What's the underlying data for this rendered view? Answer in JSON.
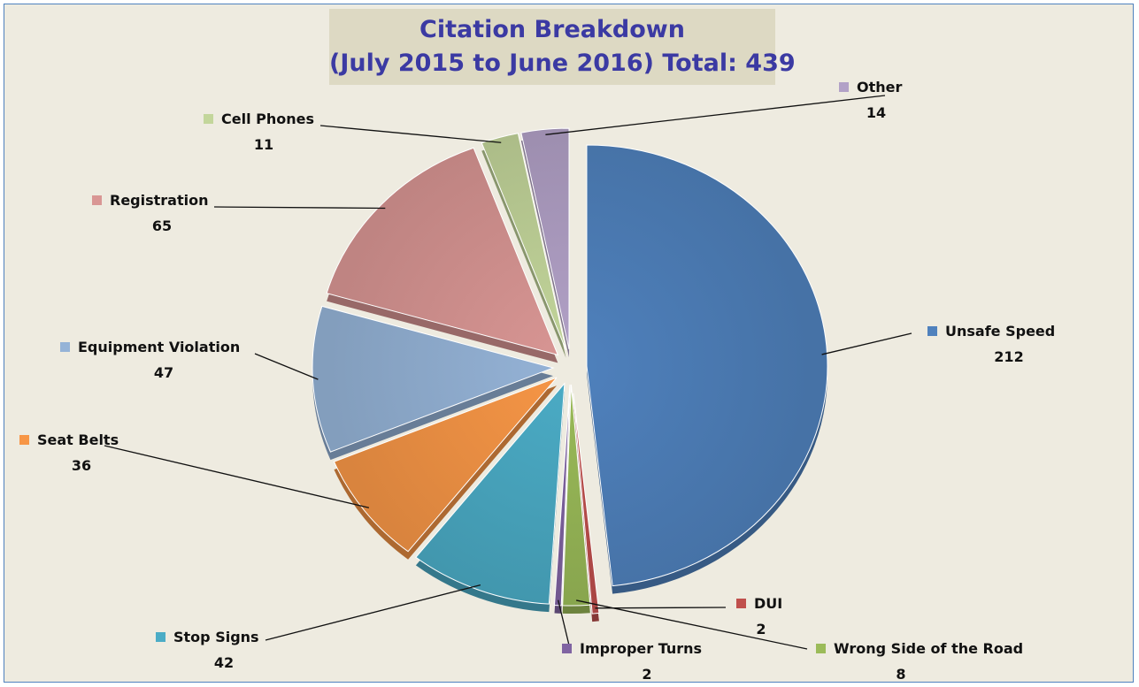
{
  "chart_data": {
    "type": "pie",
    "title_line1": "Citation Breakdown",
    "title_line2": "(July 2015 to June 2016) Total: 439",
    "slices": [
      {
        "label": "Unsafe Speed",
        "value": 212,
        "color": "#4f81bd"
      },
      {
        "label": "DUI",
        "value": 2,
        "color": "#c0504d"
      },
      {
        "label": "Wrong Side of the Road",
        "value": 8,
        "color": "#9bbb59"
      },
      {
        "label": "Improper Turns",
        "value": 2,
        "color": "#8064a2"
      },
      {
        "label": "Stop Signs",
        "value": 42,
        "color": "#4bacc6"
      },
      {
        "label": "Seat Belts",
        "value": 36,
        "color": "#f79646"
      },
      {
        "label": "Equipment Violation",
        "value": 47,
        "color": "#95b3d7"
      },
      {
        "label": "Registration",
        "value": 65,
        "color": "#d99694"
      },
      {
        "label": "Cell Phones",
        "value": 11,
        "color": "#c3d69b"
      },
      {
        "label": "Other",
        "value": 14,
        "color": "#b2a1c7"
      }
    ]
  }
}
